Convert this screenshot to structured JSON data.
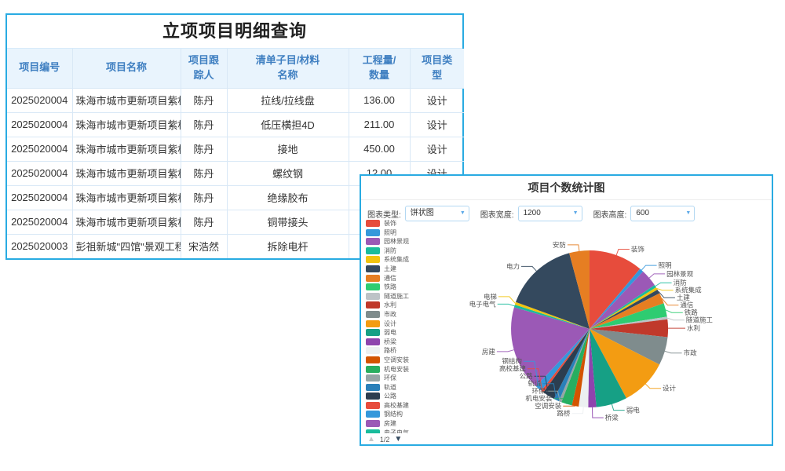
{
  "colors": {
    "card_border": "#29abe2",
    "table_header_bg": "#e9f4fd",
    "table_header_text": "#3f7fc1",
    "link_text": "#2e7ed5"
  },
  "table": {
    "title": "立项项目明细查询",
    "columns": [
      "项目编号",
      "项目名称",
      "项目跟踪人",
      "清单子目/材料名称",
      "工程量/数量",
      "项目类型"
    ],
    "rows": [
      [
        "2025020004",
        "珠海市城市更新项目紫桐",
        "陈丹",
        "拉线/拉线盘",
        "136.00",
        "设计"
      ],
      [
        "2025020004",
        "珠海市城市更新项目紫桐",
        "陈丹",
        "低压横担4D",
        "211.00",
        "设计"
      ],
      [
        "2025020004",
        "珠海市城市更新项目紫桐",
        "陈丹",
        "接地",
        "450.00",
        "设计"
      ],
      [
        "2025020004",
        "珠海市城市更新项目紫桐",
        "陈丹",
        "螺纹钢",
        "12.00",
        "设计"
      ],
      [
        "2025020004",
        "珠海市城市更新项目紫桐",
        "陈丹",
        "绝缘胶布",
        "",
        ""
      ],
      [
        "2025020004",
        "珠海市城市更新项目紫桐",
        "陈丹",
        "铜带接头",
        "",
        ""
      ],
      [
        "2025020003",
        "彭祖新城\"四馆\"景观工程",
        "宋浩然",
        "拆除电杆",
        "",
        ""
      ]
    ]
  },
  "chart_panel": {
    "title": "项目个数统计图",
    "controls": [
      {
        "name": "chart-type",
        "label": "图表类型:",
        "value": "饼状图",
        "caret": "▼"
      },
      {
        "name": "chart-width",
        "label": "图表宽度:",
        "value": "1200",
        "caret": "▼"
      },
      {
        "name": "chart-height",
        "label": "图表高度:",
        "value": "600",
        "caret": "▼"
      }
    ],
    "legend_pagination": {
      "up_icon": "▲",
      "current": "1/2",
      "down_icon": "▼"
    }
  },
  "chart_data": {
    "type": "pie",
    "title": "项目个数统计图",
    "legend_position": "left",
    "legend_pages": 2,
    "series": [
      {
        "name": "项目个数",
        "data": [
          {
            "name": "装饰",
            "value": 40,
            "color": "#e74c3c"
          },
          {
            "name": "照明",
            "value": 3,
            "color": "#3498db"
          },
          {
            "name": "园林景观",
            "value": 13,
            "color": "#9b59b6"
          },
          {
            "name": "消防",
            "value": 2,
            "color": "#1abc9c"
          },
          {
            "name": "系统集成",
            "value": 2,
            "color": "#f1c40f"
          },
          {
            "name": "土建",
            "value": 3,
            "color": "#34495e"
          },
          {
            "name": "通信",
            "value": 8,
            "color": "#e67e22"
          },
          {
            "name": "铁路",
            "value": 10,
            "color": "#2ecc71"
          },
          {
            "name": "隧道施工",
            "value": 2,
            "color": "#bdc3c7"
          },
          {
            "name": "水利",
            "value": 13,
            "color": "#c0392b"
          },
          {
            "name": "市政",
            "value": 21,
            "color": "#7f8c8d"
          },
          {
            "name": "设计",
            "value": 35,
            "color": "#f39c12"
          },
          {
            "name": "弱电",
            "value": 23,
            "color": "#16a085"
          },
          {
            "name": "桥梁",
            "value": 6,
            "color": "#8e44ad"
          },
          {
            "name": "路桥",
            "value": 7,
            "color": "#ecf0f1"
          },
          {
            "name": "空调安装",
            "value": 5,
            "color": "#d35400"
          },
          {
            "name": "机电安装",
            "value": 8,
            "color": "#27ae60"
          },
          {
            "name": "环保",
            "value": 2,
            "color": "#95a5a6"
          },
          {
            "name": "轨道",
            "value": 4,
            "color": "#2980b9"
          },
          {
            "name": "公路",
            "value": 9,
            "color": "#2c3e50"
          },
          {
            "name": "高校基建",
            "value": 2,
            "color": "#e74c3c"
          },
          {
            "name": "钢结构",
            "value": 5,
            "color": "#3498db"
          },
          {
            "name": "房建",
            "value": 63,
            "color": "#9b59b6"
          },
          {
            "name": "电子电气",
            "value": 2,
            "color": "#1abc9c"
          },
          {
            "name": "电梯",
            "value": 2,
            "color": "#f1c40f"
          },
          {
            "name": "电力",
            "value": 55,
            "color": "#34495e"
          },
          {
            "name": "安防",
            "value": 15,
            "color": "#e67e22"
          }
        ]
      }
    ]
  }
}
